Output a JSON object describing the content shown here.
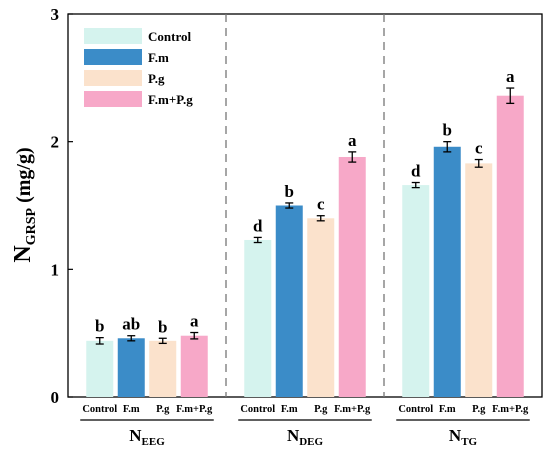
{
  "chart_data": {
    "type": "bar",
    "ylabel_main": "N",
    "ylabel_sub": "GRSP",
    "ylabel_unit": "(mg/g)",
    "ylim": [
      0,
      3
    ],
    "yticks": [
      "0",
      "1",
      "2",
      "3"
    ],
    "series_names": [
      "Control",
      "F.m",
      "P.g",
      "F.m+P.g"
    ],
    "colors": [
      "#d5f3ee",
      "#3b8cc8",
      "#fbe2cc",
      "#f7a8c8"
    ],
    "legend_position": "top-left",
    "groups": [
      {
        "label_main": "N",
        "label_sub": "EEG",
        "tick_labels": [
          "Control",
          "F.m",
          "P.g",
          "F.m+P.g"
        ],
        "values": [
          0.44,
          0.46,
          0.44,
          0.48
        ],
        "errors": [
          0.025,
          0.02,
          0.02,
          0.025
        ],
        "letters": [
          "b",
          "ab",
          "b",
          "a"
        ]
      },
      {
        "label_main": "N",
        "label_sub": "DEG",
        "tick_labels": [
          "Control",
          "F.m",
          "P.g",
          "F.m+P.g"
        ],
        "values": [
          1.23,
          1.5,
          1.4,
          1.88
        ],
        "errors": [
          0.02,
          0.02,
          0.02,
          0.04
        ],
        "letters": [
          "d",
          "b",
          "c",
          "a"
        ]
      },
      {
        "label_main": "N",
        "label_sub": "TG",
        "tick_labels": [
          "Control",
          "F.m",
          "P.g",
          "F.m+P.g"
        ],
        "values": [
          1.66,
          1.96,
          1.83,
          2.36
        ],
        "errors": [
          0.02,
          0.04,
          0.03,
          0.06
        ],
        "letters": [
          "d",
          "b",
          "c",
          "a"
        ]
      }
    ]
  }
}
